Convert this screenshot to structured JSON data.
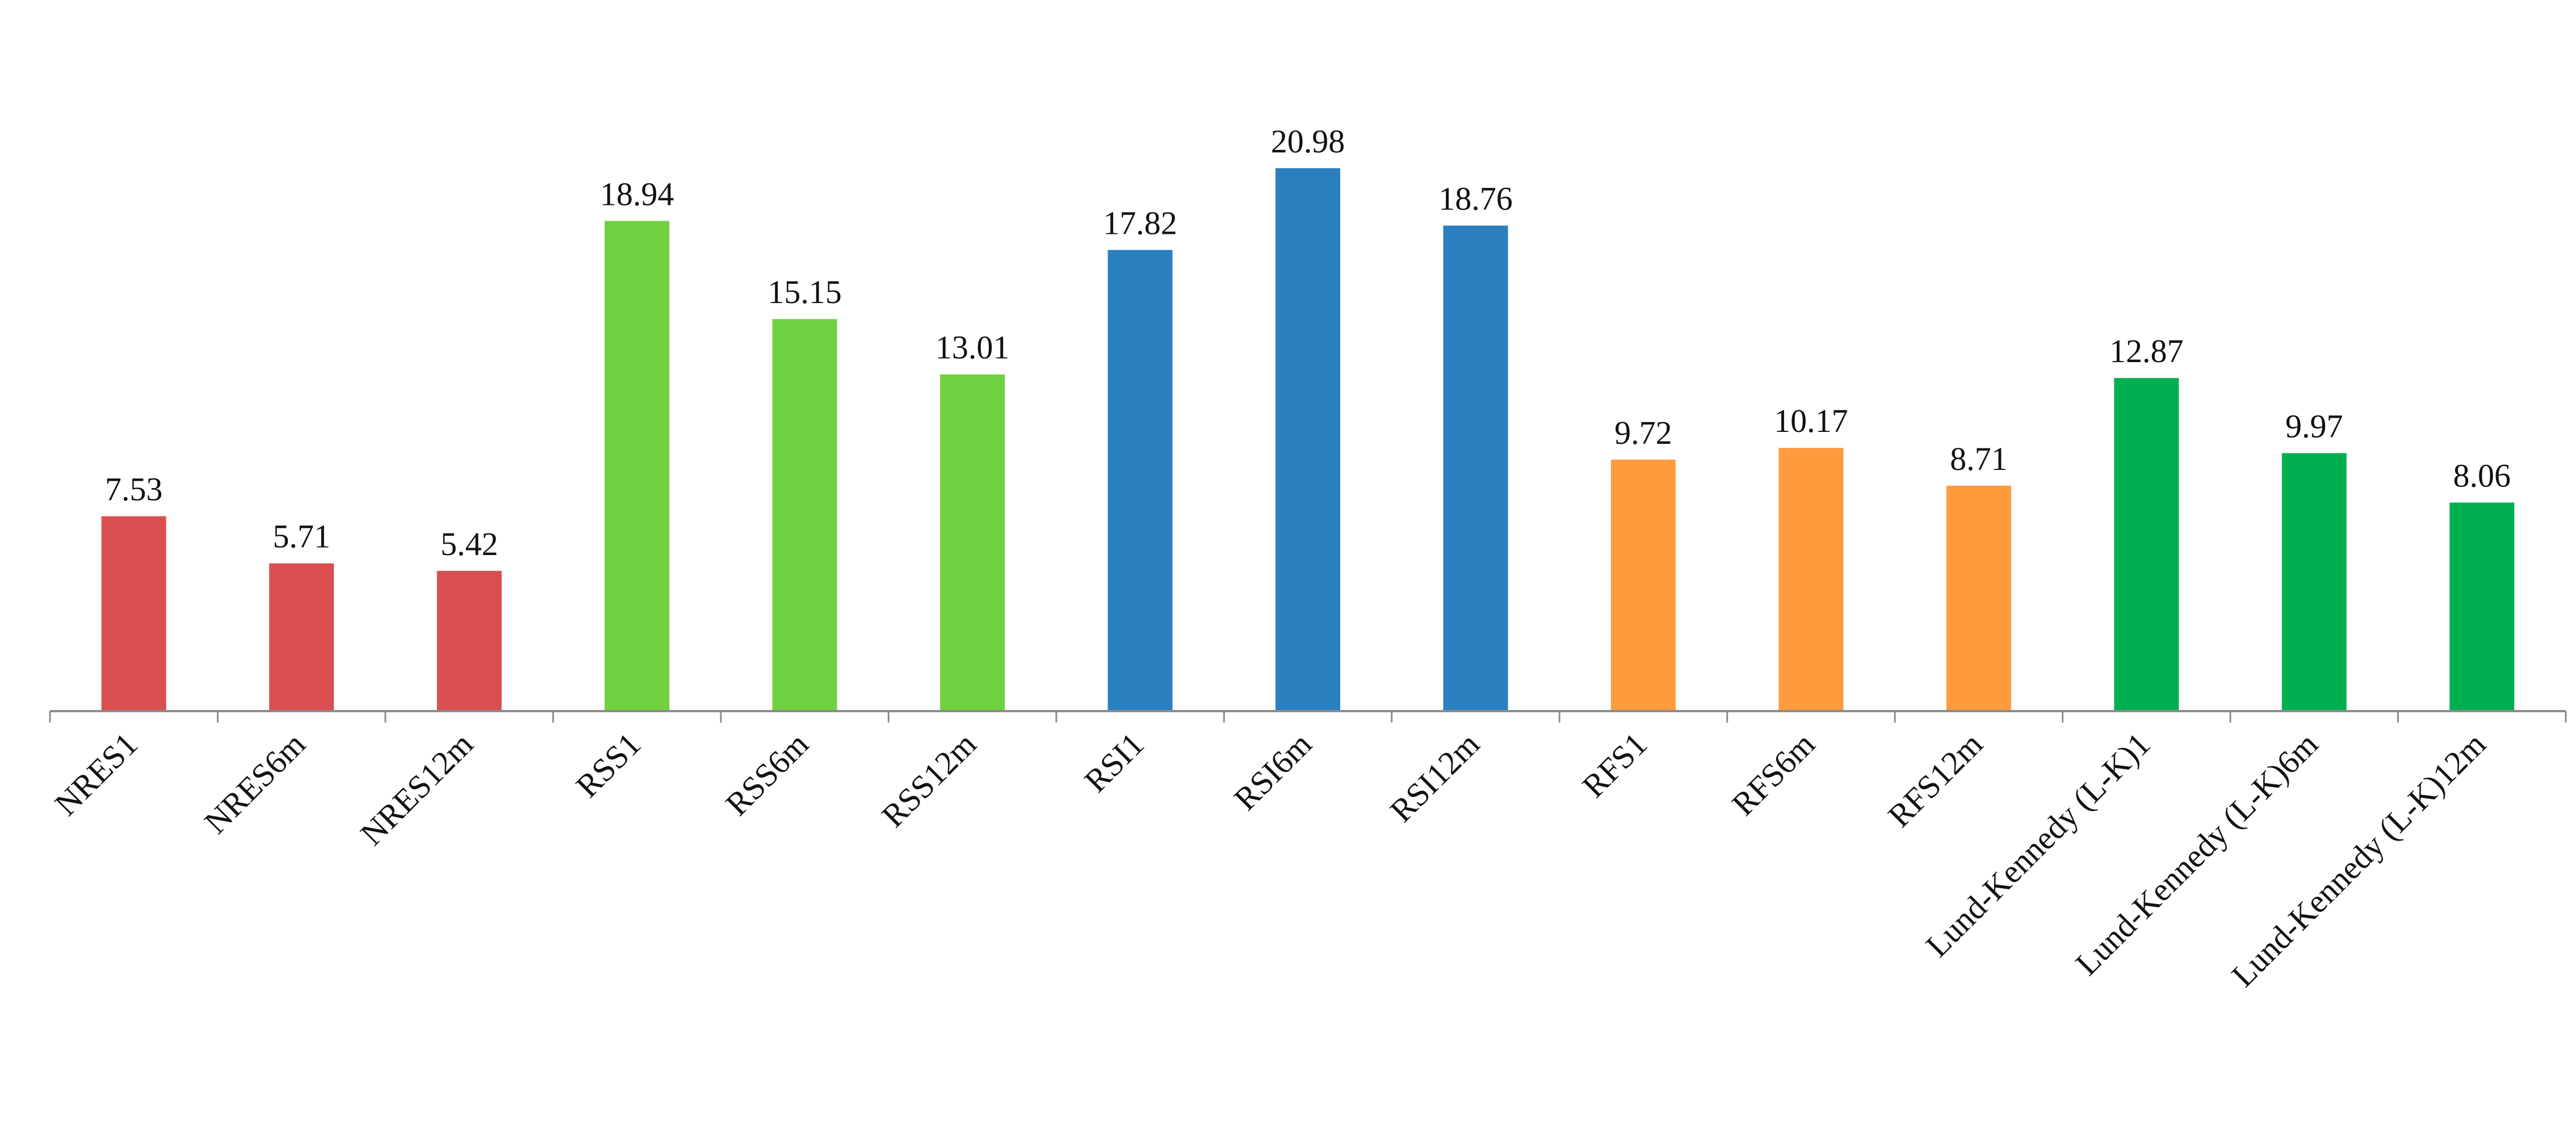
{
  "chart_data": {
    "type": "bar",
    "title": "",
    "xlabel": "",
    "ylabel": "",
    "ylim": [
      0,
      22
    ],
    "grid": false,
    "legend": "none",
    "categories": [
      "NRES1",
      "NRES6m",
      "NRES12m",
      "RSS1",
      "RSS6m",
      "RSS12m",
      "RSI1",
      "RSI6m",
      "RSI12m",
      "RFS1",
      "RFS6m",
      "RFS12m",
      "Lund-Kennedy (L-K)1",
      "Lund-Kennedy (L-K)6m",
      "Lund-Kennedy (L-K)12m"
    ],
    "values": [
      7.53,
      5.71,
      5.42,
      18.94,
      15.15,
      13.01,
      17.82,
      20.98,
      18.76,
      9.72,
      10.17,
      8.71,
      12.87,
      9.97,
      8.06
    ],
    "value_labels": [
      "7.53",
      "5.71",
      "5.42",
      "18.94",
      "15.15",
      "13.01",
      "17.82",
      "20.98",
      "18.76",
      "9.72",
      "10.17",
      "8.71",
      "12.87",
      "9.97",
      "8.06"
    ],
    "bar_colors": [
      "#d94f4f",
      "#d94f4f",
      "#d94f4f",
      "#6fd13f",
      "#6fd13f",
      "#6fd13f",
      "#2a7fbf",
      "#2a7fbf",
      "#2a7fbf",
      "#ff9a3d",
      "#ff9a3d",
      "#ff9a3d",
      "#00b050",
      "#00b050",
      "#00b050"
    ],
    "axis_color": "#8c8c8c"
  }
}
